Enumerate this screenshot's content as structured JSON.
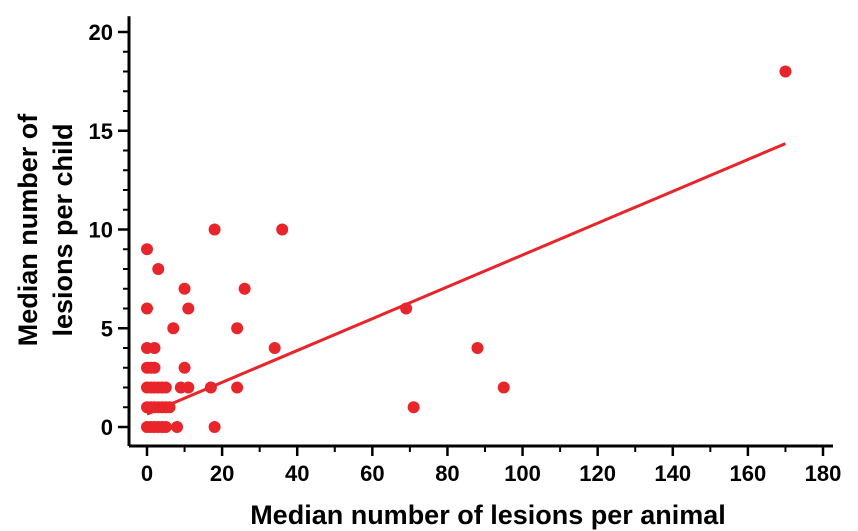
{
  "chart_data": {
    "type": "scatter",
    "title": "",
    "xlabel": "Median number of lesions per animal",
    "ylabel_lines": [
      "Median number of",
      "lesions per child"
    ],
    "xlim": [
      -5,
      180
    ],
    "ylim": [
      -0.6,
      20.8
    ],
    "x_ticks": [
      0,
      20,
      40,
      60,
      80,
      100,
      120,
      140,
      160,
      180
    ],
    "y_ticks": [
      0,
      5,
      10,
      15,
      20
    ],
    "x_minor_step": 10,
    "y_minor_step": 1,
    "grid": false,
    "legend": "none",
    "point_color": "#e8252b",
    "line_color": "#e8252b",
    "points": [
      {
        "x": 0,
        "y": 0
      },
      {
        "x": 1,
        "y": 0
      },
      {
        "x": 2,
        "y": 0
      },
      {
        "x": 3,
        "y": 0
      },
      {
        "x": 4,
        "y": 0
      },
      {
        "x": 5,
        "y": 0
      },
      {
        "x": 8,
        "y": 0
      },
      {
        "x": 18,
        "y": 0
      },
      {
        "x": 0,
        "y": 1
      },
      {
        "x": 1,
        "y": 1
      },
      {
        "x": 2,
        "y": 1
      },
      {
        "x": 3,
        "y": 1
      },
      {
        "x": 4,
        "y": 1
      },
      {
        "x": 5,
        "y": 1
      },
      {
        "x": 6,
        "y": 1
      },
      {
        "x": 71,
        "y": 1
      },
      {
        "x": 0,
        "y": 2
      },
      {
        "x": 1,
        "y": 2
      },
      {
        "x": 2,
        "y": 2
      },
      {
        "x": 3,
        "y": 2
      },
      {
        "x": 4,
        "y": 2
      },
      {
        "x": 5,
        "y": 2
      },
      {
        "x": 9,
        "y": 2
      },
      {
        "x": 11,
        "y": 2
      },
      {
        "x": 17,
        "y": 2
      },
      {
        "x": 24,
        "y": 2
      },
      {
        "x": 95,
        "y": 2
      },
      {
        "x": 0,
        "y": 3
      },
      {
        "x": 1,
        "y": 3
      },
      {
        "x": 2,
        "y": 3
      },
      {
        "x": 10,
        "y": 3
      },
      {
        "x": 0,
        "y": 4
      },
      {
        "x": 2,
        "y": 4
      },
      {
        "x": 34,
        "y": 4
      },
      {
        "x": 88,
        "y": 4
      },
      {
        "x": 7,
        "y": 5
      },
      {
        "x": 24,
        "y": 5
      },
      {
        "x": 0,
        "y": 6
      },
      {
        "x": 11,
        "y": 6
      },
      {
        "x": 69,
        "y": 6
      },
      {
        "x": 10,
        "y": 7
      },
      {
        "x": 26,
        "y": 7
      },
      {
        "x": 3,
        "y": 8
      },
      {
        "x": 0,
        "y": 9
      },
      {
        "x": 18,
        "y": 10
      },
      {
        "x": 36,
        "y": 10
      },
      {
        "x": 170,
        "y": 18
      }
    ],
    "regression_line": {
      "x": [
        0,
        170
      ],
      "y": [
        0.65,
        14.35
      ]
    }
  }
}
